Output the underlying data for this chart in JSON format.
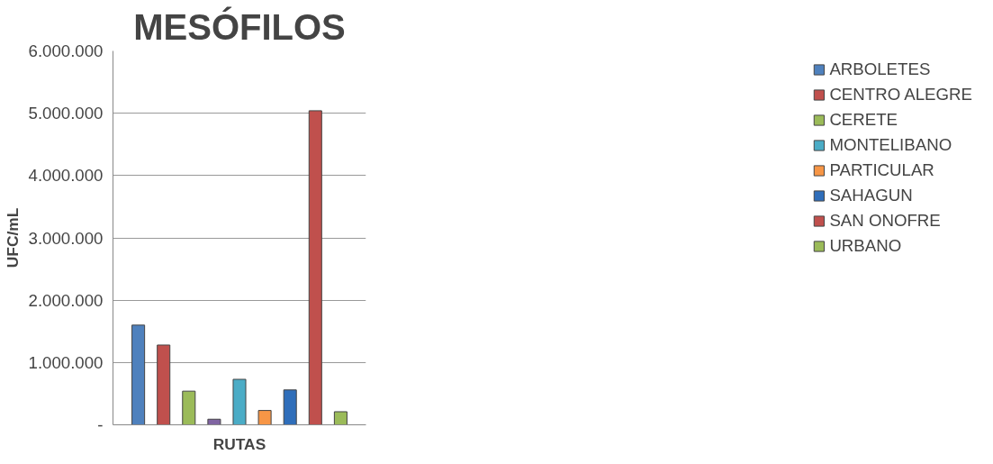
{
  "chart_data": {
    "type": "bar",
    "title": "MESÓFILOS",
    "xlabel": "RUTAS",
    "ylabel": "UFC/mL",
    "categories": [
      null
    ],
    "series": [
      {
        "name": "ARBOLETES",
        "color": "#4f81bd",
        "values": [
          1600000
        ]
      },
      {
        "name": "CENTRO ALEGRE",
        "color": "#c0504d",
        "values": [
          1280000
        ]
      },
      {
        "name": "CERETE",
        "color": "#9bbb59",
        "values": [
          540000
        ]
      },
      {
        "color": "#8064a2",
        "values": [
          90000
        ]
      },
      {
        "name": "MONTELIBANO",
        "color": "#4bacc6",
        "values": [
          730000
        ]
      },
      {
        "name": "PARTICULAR",
        "color": "#f79646",
        "values": [
          230000
        ]
      },
      {
        "name": "SAHAGUN",
        "color": "#2f6eba",
        "values": [
          560000
        ]
      },
      {
        "name": "SAN ONOFRE",
        "color": "#c0504d",
        "values": [
          5040000
        ]
      },
      {
        "name": "URBANO",
        "color": "#9bbb59",
        "values": [
          210000
        ]
      }
    ],
    "ylim": [
      0,
      6000000
    ],
    "yticks": [
      {
        "value": 0,
        "label": "-"
      },
      {
        "value": 1000000,
        "label": "1.000.000"
      },
      {
        "value": 2000000,
        "label": "2.000.000"
      },
      {
        "value": 3000000,
        "label": "3.000.000"
      },
      {
        "value": 4000000,
        "label": "4.000.000"
      },
      {
        "value": 5000000,
        "label": "5.000.000"
      },
      {
        "value": 6000000,
        "label": "6.000.000"
      }
    ],
    "grid": "y",
    "legend": "right"
  }
}
